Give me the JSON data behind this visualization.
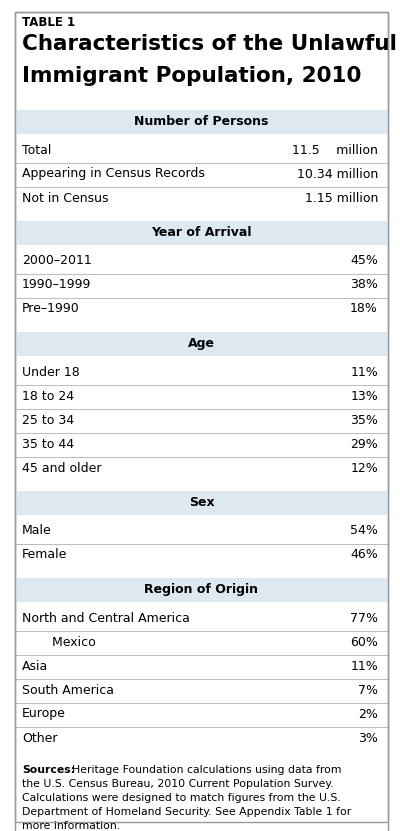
{
  "table_label": "TABLE 1",
  "title_line1": "Characteristics of the Unlawful",
  "title_line2": "Immigrant Population, 2010",
  "sections": [
    {
      "header": "Number of Persons",
      "rows": [
        {
          "label": "Total",
          "value": "11.5  million",
          "indent": 0
        },
        {
          "label": "Appearing in Census Records",
          "value": "10.34 million",
          "indent": 0
        },
        {
          "label": "Not in Census",
          "value": "1.15 million",
          "indent": 0
        }
      ]
    },
    {
      "header": "Year of Arrival",
      "rows": [
        {
          "label": "2000–2011",
          "value": "45%",
          "indent": 0
        },
        {
          "label": "1990–1999",
          "value": "38%",
          "indent": 0
        },
        {
          "label": "Pre–1990",
          "value": "18%",
          "indent": 0
        }
      ]
    },
    {
      "header": "Age",
      "rows": [
        {
          "label": "Under 18",
          "value": "11%",
          "indent": 0
        },
        {
          "label": "18 to 24",
          "value": "13%",
          "indent": 0
        },
        {
          "label": "25 to 34",
          "value": "35%",
          "indent": 0
        },
        {
          "label": "35 to 44",
          "value": "29%",
          "indent": 0
        },
        {
          "label": "45 and older",
          "value": "12%",
          "indent": 0
        }
      ]
    },
    {
      "header": "Sex",
      "rows": [
        {
          "label": "Male",
          "value": "54%",
          "indent": 0
        },
        {
          "label": "Female",
          "value": "46%",
          "indent": 0
        }
      ]
    },
    {
      "header": "Region of Origin",
      "rows": [
        {
          "label": "North and Central America",
          "value": "77%",
          "indent": 0
        },
        {
          "label": "    Mexico",
          "value": "60%",
          "indent": 1
        },
        {
          "label": "Asia",
          "value": "11%",
          "indent": 0
        },
        {
          "label": "South America",
          "value": "7%",
          "indent": 0
        },
        {
          "label": "Europe",
          "value": "2%",
          "indent": 0
        },
        {
          "label": "Other",
          "value": "3%",
          "indent": 0
        }
      ]
    }
  ],
  "sources_line1": "Heritage Foundation calculations using data from",
  "sources_line2": "the U.S. Census Bureau, 2010 Current Population Survey.",
  "sources_line3": "Calculations were designed to match figures from the U.S.",
  "sources_line4": "Department of Homeland Security. See Appendix Table 1 for",
  "sources_line5": "more information.",
  "header_bg_color": "#dde8f0",
  "bg_color": "#ffffff",
  "text_color": "#000000",
  "line_color": "#bbbbbb",
  "border_color": "#999999"
}
